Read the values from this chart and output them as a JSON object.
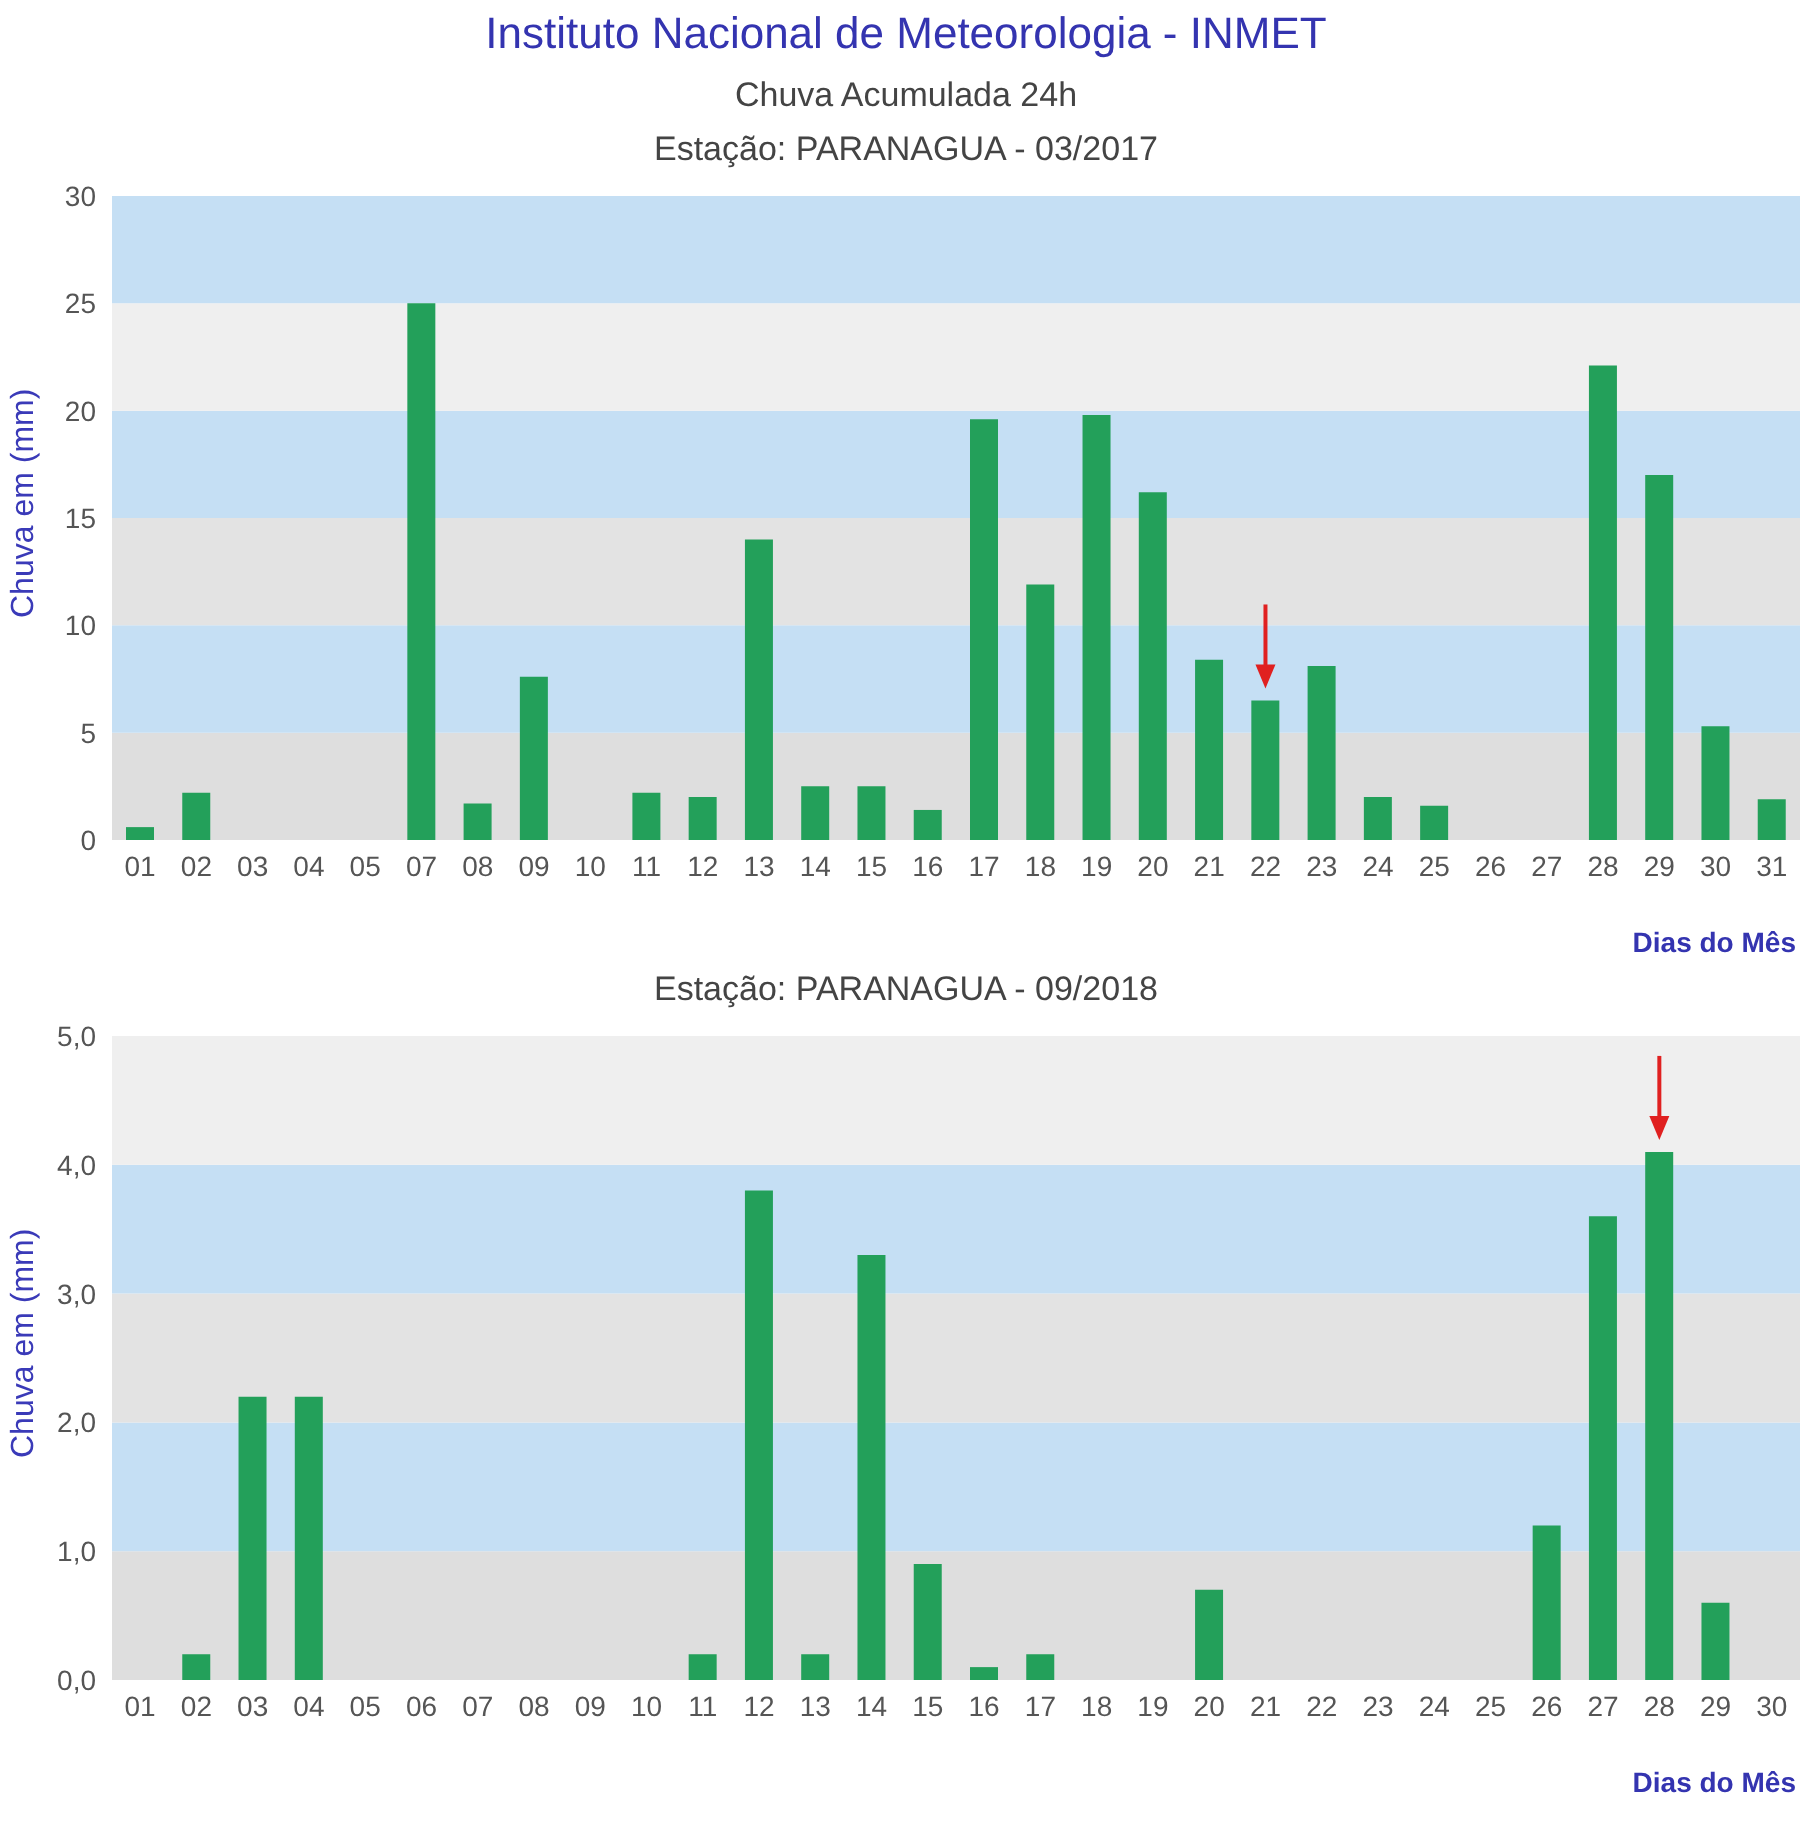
{
  "chart_data": [
    {
      "type": "bar",
      "title": "Estação: PARANAGUA - 03/2017",
      "annotations": [
        "Instituto Nacional de Meteorologia - INMET",
        "Chuva Acumulada 24h"
      ],
      "xlabel": "Dias do Mês",
      "ylabel": "Chuva em (mm)",
      "categories": [
        "01",
        "02",
        "03",
        "04",
        "05",
        "07",
        "08",
        "09",
        "10",
        "11",
        "12",
        "13",
        "14",
        "15",
        "16",
        "17",
        "18",
        "19",
        "20",
        "21",
        "22",
        "23",
        "24",
        "25",
        "26",
        "27",
        "28",
        "29",
        "30",
        "31"
      ],
      "values": [
        0.6,
        2.2,
        0,
        0,
        0,
        25.0,
        1.7,
        7.6,
        0,
        2.2,
        2.0,
        14.0,
        2.5,
        2.5,
        1.4,
        19.6,
        11.9,
        19.8,
        16.2,
        8.4,
        6.5,
        8.1,
        2.0,
        1.6,
        0,
        0,
        22.1,
        17.0,
        5.3,
        1.9
      ],
      "color": "#23a05a",
      "ylim": [
        0,
        30
      ],
      "yticks": [
        0,
        5,
        10,
        15,
        20,
        25,
        30
      ],
      "bands": [
        {
          "axis": "y",
          "from": 0,
          "to": 5,
          "color": "#dedede"
        },
        {
          "axis": "y",
          "from": 5,
          "to": 10,
          "color": "#c5dff4"
        },
        {
          "axis": "y",
          "from": 10,
          "to": 15,
          "color": "#e3e3e3"
        },
        {
          "axis": "y",
          "from": 15,
          "to": 20,
          "color": "#c5dff4"
        },
        {
          "axis": "y",
          "from": 20,
          "to": 25,
          "color": "#efefef"
        },
        {
          "axis": "y",
          "from": 25,
          "to": 30,
          "color": "#c5dff4"
        }
      ]
    },
    {
      "type": "bar",
      "title": "Estação: PARANAGUA - 09/2018",
      "xlabel": "Dias do Mês",
      "ylabel": "Chuva em (mm)",
      "categories": [
        "01",
        "02",
        "03",
        "04",
        "05",
        "06",
        "07",
        "08",
        "09",
        "10",
        "11",
        "12",
        "13",
        "14",
        "15",
        "16",
        "17",
        "18",
        "19",
        "20",
        "21",
        "22",
        "23",
        "24",
        "25",
        "26",
        "27",
        "28",
        "29",
        "30"
      ],
      "values": [
        0,
        0.2,
        2.2,
        2.2,
        0,
        0,
        0,
        0,
        0,
        0,
        0.2,
        3.8,
        0.2,
        3.3,
        0.9,
        0.1,
        0.2,
        0,
        0,
        0.7,
        0,
        0,
        0,
        0,
        0,
        1.2,
        3.6,
        4.1,
        0.6,
        0
      ],
      "color": "#23a05a",
      "ylim": [
        0,
        5
      ],
      "yticks": [
        {
          "value": 0,
          "label": "0,0"
        },
        {
          "value": 1,
          "label": "1,0"
        },
        {
          "value": 2,
          "label": "2,0"
        },
        {
          "value": 3,
          "label": "3,0"
        },
        {
          "value": 4,
          "label": "4,0"
        },
        {
          "value": 5,
          "label": "5,0"
        }
      ],
      "bands": [
        {
          "axis": "y",
          "from": 0,
          "to": 1,
          "color": "#dedede"
        },
        {
          "axis": "y",
          "from": 1,
          "to": 2,
          "color": "#c5dff4"
        },
        {
          "axis": "y",
          "from": 2,
          "to": 3,
          "color": "#e3e3e3"
        },
        {
          "axis": "y",
          "from": 3,
          "to": 4,
          "color": "#c5dff4"
        },
        {
          "axis": "y",
          "from": 4,
          "to": 5,
          "color": "#efefef"
        }
      ]
    }
  ]
}
